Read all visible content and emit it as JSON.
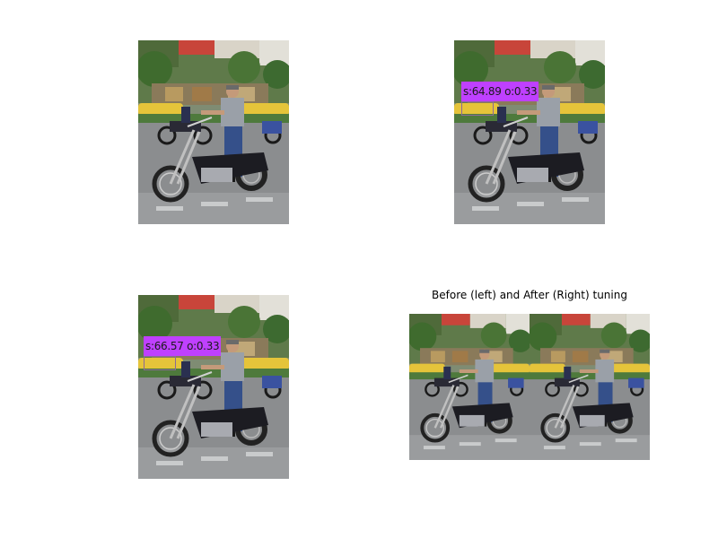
{
  "panels": [
    {
      "id": "original",
      "detection": null
    },
    {
      "id": "before-tuning",
      "detection": {
        "label": "s:64.89 o:0.33",
        "label_color": "#bf40ff"
      }
    },
    {
      "id": "after-tuning",
      "detection": {
        "label": "s:66.57 o:0.33",
        "label_color": "#bf40ff"
      }
    },
    {
      "id": "comparison",
      "title": "Before (left) and After (Right) tuning",
      "detection": null
    }
  ],
  "colors": {
    "background": "#ffffff",
    "label_fill": "#bf40ff",
    "box_stroke": "#8a6a9a"
  }
}
